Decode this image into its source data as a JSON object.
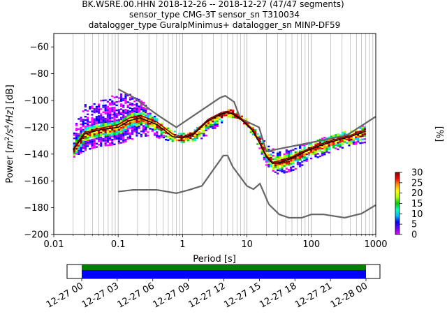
{
  "chart_data": {
    "type": "heatmap",
    "title_lines": [
      "BK.WSRE.00.HHN   2018-12-26 -- 2018-12-27  (47/47 segments)",
      "sensor_type CMG-3T sensor_sn T310034",
      "datalogger_type GuralpMinimus+ datalogger_sn MINP-DF59"
    ],
    "xlabel": "Period [s]",
    "ylabel_parts": [
      "Power [",
      "m",
      "2",
      "/",
      "s",
      "4",
      "/",
      "Hz",
      "] [dB]"
    ],
    "xscale": "log",
    "xlim": [
      0.01,
      1000
    ],
    "ylim": [
      -200,
      -50
    ],
    "xticks": [
      0.01,
      0.1,
      1,
      10,
      100,
      1000
    ],
    "xtick_labels": [
      "0.01",
      "0.1",
      "1",
      "10",
      "100",
      "1000"
    ],
    "yticks": [
      -200,
      -180,
      -160,
      -140,
      -120,
      -100,
      -80,
      -60
    ],
    "ytick_labels": [
      "−200",
      "−180",
      "−160",
      "−140",
      "−120",
      "−100",
      "−80",
      "−60"
    ],
    "grid": "x-major-and-minor",
    "colorbar": {
      "label": "[%]",
      "range": [
        0,
        30
      ],
      "ticks": [
        0,
        5,
        10,
        15,
        20,
        25,
        30
      ],
      "tick_labels": [
        "0",
        "5",
        "10",
        "15",
        "20",
        "25",
        "30"
      ],
      "colors": [
        "#ffffff",
        "#ff00ff",
        "#6600ff",
        "#0000ff",
        "#00bfff",
        "#00ffbf",
        "#00cc00",
        "#aaff00",
        "#ffff00",
        "#ff9900",
        "#ff0000",
        "#8b0000"
      ]
    },
    "series": [
      {
        "role": "noise-model-high",
        "color": "#666666",
        "points": [
          [
            0.1,
            -91.5
          ],
          [
            0.17,
            -97.4
          ],
          [
            0.4,
            -110.5
          ],
          [
            0.8,
            -120
          ],
          [
            3.8,
            -98
          ],
          [
            4.6,
            -96.5
          ],
          [
            6.3,
            -101
          ],
          [
            7.9,
            -113.5
          ],
          [
            15.4,
            -120
          ],
          [
            20,
            -138
          ],
          [
            354.8,
            -126
          ],
          [
            1000,
            -112
          ]
        ]
      },
      {
        "role": "noise-model-low",
        "color": "#666666",
        "points": [
          [
            0.1,
            -168
          ],
          [
            0.17,
            -166.7
          ],
          [
            0.4,
            -166.7
          ],
          [
            0.8,
            -169.2
          ],
          [
            1.26,
            -166.7
          ],
          [
            2,
            -163.7
          ],
          [
            4.3,
            -141.1
          ],
          [
            5.0,
            -141.1
          ],
          [
            6.0,
            -149.4
          ],
          [
            10,
            -163.8
          ],
          [
            12.6,
            -166.2
          ],
          [
            15.9,
            -162.1
          ],
          [
            21.9,
            -177.5
          ],
          [
            31.6,
            -185
          ],
          [
            45,
            -187.5
          ],
          [
            70.8,
            -187.5
          ],
          [
            100,
            -185
          ],
          [
            154.5,
            -185
          ],
          [
            328.8,
            -187.5
          ],
          [
            600,
            -184.4
          ],
          [
            1000,
            -178
          ]
        ]
      },
      {
        "role": "median",
        "color": "#000000",
        "points": [
          [
            0.02,
            -137
          ],
          [
            0.03,
            -125
          ],
          [
            0.05,
            -122
          ],
          [
            0.1,
            -120
          ],
          [
            0.15,
            -115
          ],
          [
            0.22,
            -113
          ],
          [
            0.4,
            -118
          ],
          [
            0.7,
            -127
          ],
          [
            1.0,
            -128
          ],
          [
            1.5,
            -125
          ],
          [
            2.5,
            -115
          ],
          [
            4.0,
            -110
          ],
          [
            5.0,
            -109
          ],
          [
            6.0,
            -110
          ],
          [
            8.0,
            -114
          ],
          [
            12,
            -122
          ],
          [
            15,
            -130
          ],
          [
            20,
            -142
          ],
          [
            25,
            -147
          ],
          [
            35,
            -146
          ],
          [
            50,
            -143
          ],
          [
            100,
            -136
          ],
          [
            200,
            -131
          ],
          [
            400,
            -127
          ],
          [
            700,
            -123
          ]
        ]
      },
      {
        "role": "mean",
        "color": "#8b0000",
        "points": [
          [
            0.02,
            -136
          ],
          [
            0.03,
            -124
          ],
          [
            0.05,
            -121
          ],
          [
            0.1,
            -118
          ],
          [
            0.15,
            -113
          ],
          [
            0.22,
            -111
          ],
          [
            0.4,
            -116
          ],
          [
            0.7,
            -125
          ],
          [
            1.0,
            -127
          ],
          [
            1.5,
            -124
          ],
          [
            2.5,
            -114
          ],
          [
            4.0,
            -109
          ],
          [
            5.0,
            -108
          ],
          [
            6.0,
            -109
          ],
          [
            8.0,
            -113
          ],
          [
            12,
            -121
          ],
          [
            15,
            -129
          ],
          [
            20,
            -141
          ],
          [
            25,
            -146
          ],
          [
            35,
            -145
          ],
          [
            50,
            -142
          ],
          [
            100,
            -135
          ],
          [
            200,
            -130
          ],
          [
            400,
            -126
          ],
          [
            700,
            -122
          ]
        ]
      }
    ],
    "density_envelope": {
      "period": [
        0.02,
        0.03,
        0.05,
        0.08,
        0.12,
        0.2,
        0.3,
        0.5,
        0.8,
        1.2,
        2,
        3,
        5,
        7,
        10,
        15,
        20,
        30,
        50,
        100,
        200,
        400,
        700
      ],
      "upper_db": [
        -120,
        -102,
        -99,
        -96,
        -94,
        -97,
        -107,
        -119,
        -124,
        -124,
        -118,
        -112,
        -107,
        -108,
        -115,
        -125,
        -133,
        -138,
        -136,
        -130,
        -126,
        -122,
        -117
      ],
      "lower_db": [
        -142,
        -137,
        -134,
        -133,
        -131,
        -127,
        -126,
        -129,
        -131,
        -131,
        -128,
        -121,
        -112,
        -113,
        -120,
        -135,
        -150,
        -155,
        -152,
        -144,
        -138,
        -133,
        -131
      ]
    },
    "timeline": {
      "tick_labels": [
        "12-27 00",
        "12-27 03",
        "12-27 06",
        "12-27 09",
        "12-27 12",
        "12-27 15",
        "12-27 18",
        "12-27 21",
        "12-28 00"
      ],
      "coverage_fraction": [
        0.0,
        1.0
      ],
      "colors": {
        "upper": "#008000",
        "lower": "#0000ff"
      }
    }
  }
}
